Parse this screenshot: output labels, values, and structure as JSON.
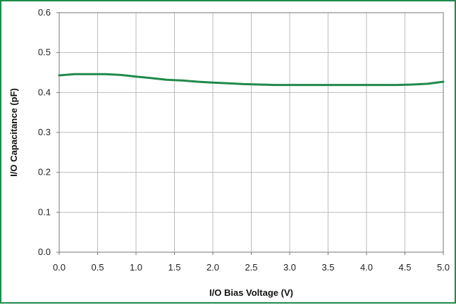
{
  "chart_data": {
    "type": "line",
    "title": "",
    "xlabel": "I/O Bias Voltage (V)",
    "ylabel": "I/O Capacitance (pF)",
    "xlim": [
      0,
      5.0
    ],
    "ylim": [
      0,
      0.6
    ],
    "x_ticks": [
      "0.0",
      "0.5",
      "1.0",
      "1.5",
      "2.0",
      "2.5",
      "3.0",
      "3.5",
      "4.0",
      "4.5",
      "5.0"
    ],
    "y_ticks": [
      "0.0",
      "0.1",
      "0.2",
      "0.3",
      "0.4",
      "0.5",
      "0.6"
    ],
    "grid": true,
    "legend": "none",
    "series": [
      {
        "color": "#1f8a4c",
        "x": [
          0.0,
          0.2,
          0.4,
          0.6,
          0.8,
          1.0,
          1.2,
          1.4,
          1.6,
          1.8,
          2.0,
          2.2,
          2.4,
          2.6,
          2.8,
          3.0,
          3.2,
          3.4,
          3.6,
          3.8,
          4.0,
          4.2,
          4.4,
          4.6,
          4.8,
          5.0
        ],
        "values": [
          0.443,
          0.446,
          0.446,
          0.446,
          0.444,
          0.44,
          0.436,
          0.432,
          0.43,
          0.427,
          0.425,
          0.423,
          0.421,
          0.42,
          0.419,
          0.419,
          0.419,
          0.419,
          0.419,
          0.419,
          0.419,
          0.419,
          0.419,
          0.42,
          0.422,
          0.427
        ]
      }
    ]
  },
  "colors": {
    "frame": "#1f8a4c",
    "grid": "#bdbdbd",
    "axis": "#777777"
  }
}
